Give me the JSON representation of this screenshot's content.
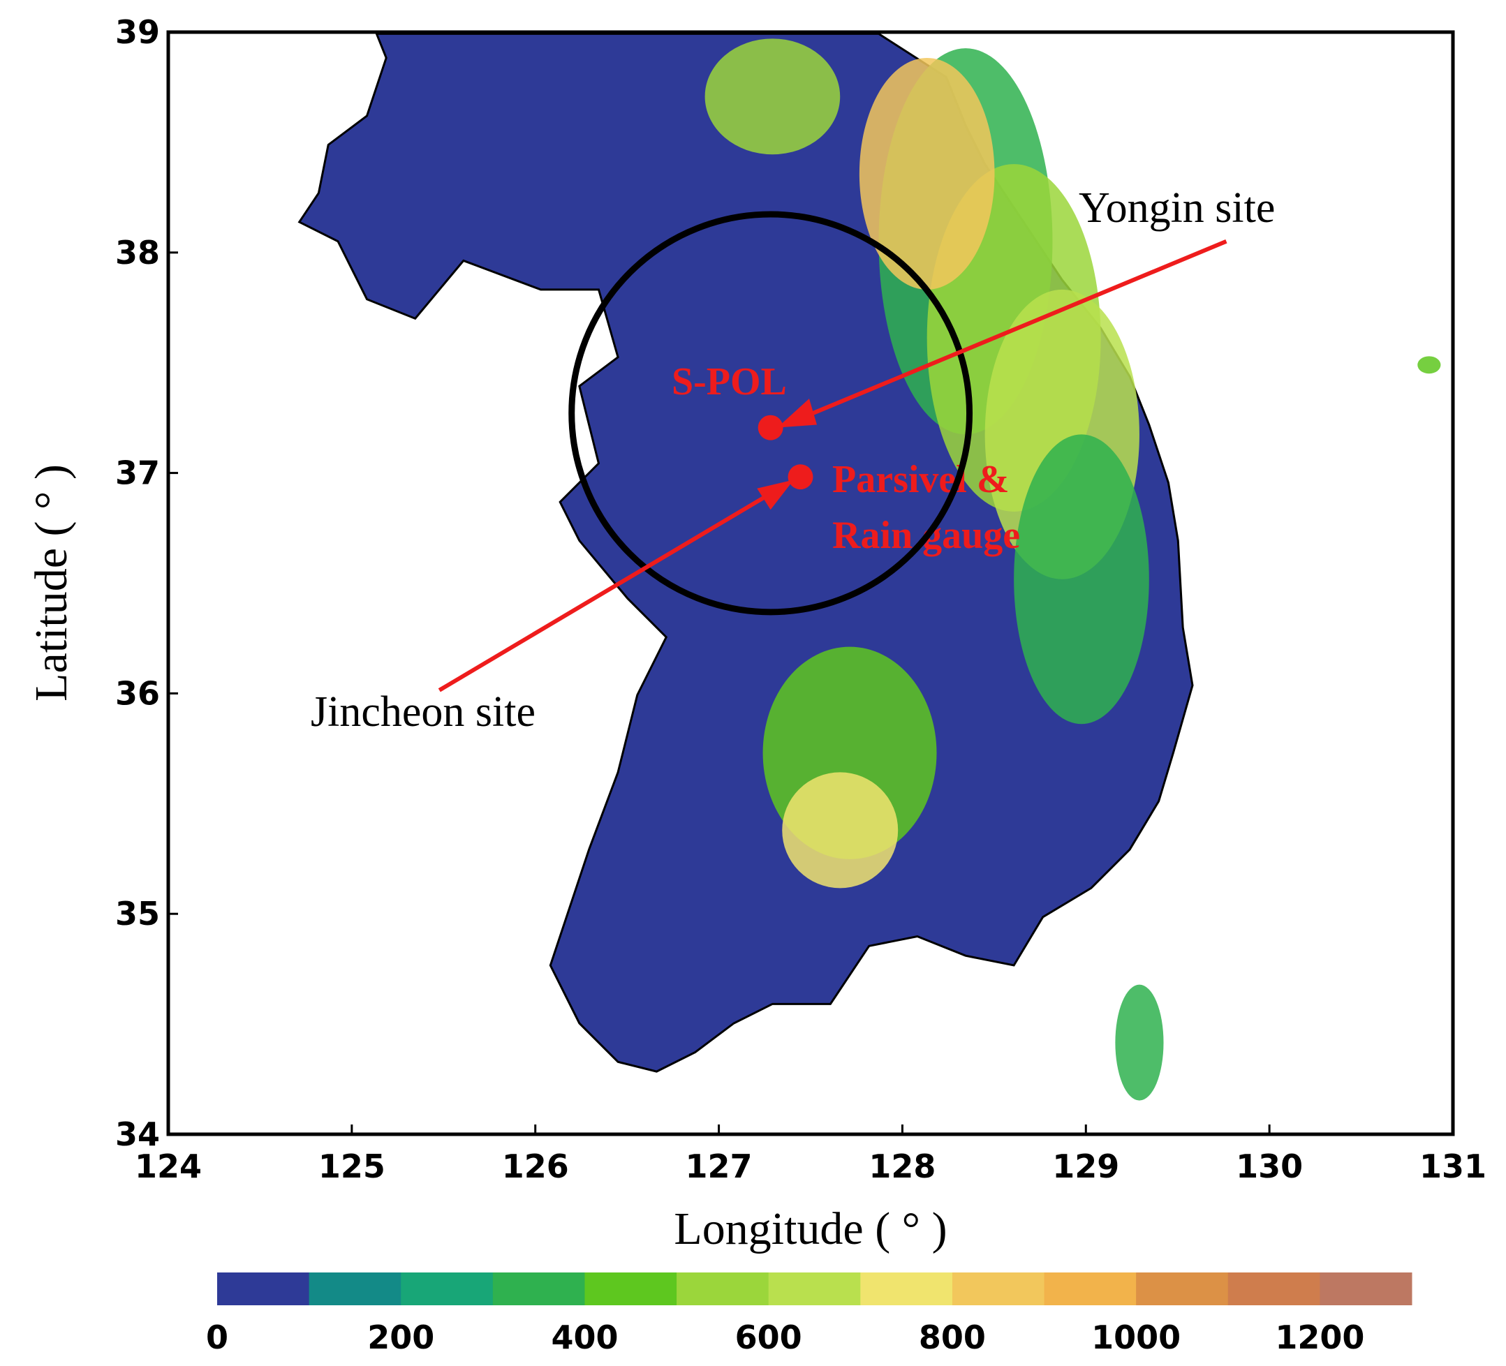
{
  "map": {
    "xlabel": "Longitude ( ° )",
    "ylabel": "Latitude ( ° )",
    "xlim": [
      124,
      131
    ],
    "ylim": [
      34,
      39
    ],
    "xticks": [
      124,
      125,
      126,
      127,
      128,
      129,
      130,
      131
    ],
    "yticks": [
      34,
      35,
      36,
      37,
      38,
      39
    ],
    "annotations": {
      "yongin": "Yongin site",
      "jincheon": "Jincheon site",
      "spol": "S-POL",
      "parsivel_1": "Parsivel &",
      "parsivel_2": "Rain gauge"
    },
    "colorbar": {
      "lim": [
        0,
        1300
      ],
      "ticks": [
        0,
        200,
        400,
        600,
        800,
        1000,
        1200
      ],
      "colors": [
        "#2e3a97",
        "#138a87",
        "#18a677",
        "#2fb14f",
        "#5ec71f",
        "#9bd63b",
        "#b9e04e",
        "#f0e46e",
        "#f2c75c",
        "#f2b34b",
        "#dc9146",
        "#cf7d4d",
        "#bd7862"
      ]
    }
  }
}
